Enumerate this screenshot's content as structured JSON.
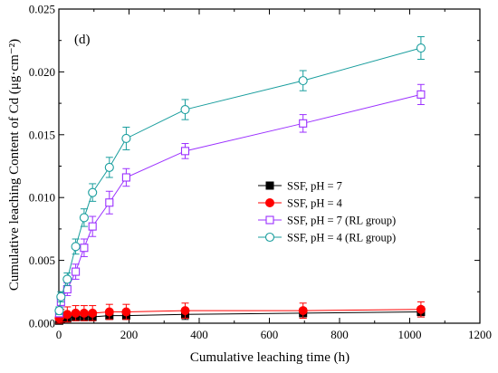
{
  "chart_data": {
    "type": "line",
    "panel_label": "(d)",
    "xlabel": "Cumulative leaching time (h)",
    "ylabel": "Cumulative leaching Content of Cd (μg·cm⁻²)",
    "xlim": [
      0,
      1200
    ],
    "ylim": [
      0,
      0.025
    ],
    "xticks": [
      0,
      200,
      400,
      600,
      800,
      1000,
      1200
    ],
    "yticks": [
      0.0,
      0.005,
      0.01,
      0.015,
      0.02,
      0.025
    ],
    "ytick_labels": [
      "0.000",
      "0.005",
      "0.010",
      "0.015",
      "0.020",
      "0.025"
    ],
    "grid": false,
    "legend_position": "center-right",
    "series": [
      {
        "name": "SSF, pH = 7",
        "color": "#000000",
        "marker": "square-filled",
        "x": [
          1,
          6,
          24,
          48,
          72,
          96,
          144,
          192,
          360,
          696,
          1032
        ],
        "y": [
          0.0002,
          0.0003,
          0.0004,
          0.0005,
          0.0005,
          0.0005,
          0.0006,
          0.0006,
          0.0007,
          0.0008,
          0.0009
        ],
        "err": [
          0.0002,
          0.0002,
          0.0003,
          0.0003,
          0.0003,
          0.0003,
          0.0003,
          0.0003,
          0.0004,
          0.0004,
          0.0004
        ]
      },
      {
        "name": "SSF, pH = 4",
        "color": "#ff0000",
        "marker": "circle-filled",
        "x": [
          1,
          6,
          24,
          48,
          72,
          96,
          144,
          192,
          360,
          696,
          1032
        ],
        "y": [
          0.0004,
          0.0006,
          0.0007,
          0.0008,
          0.0008,
          0.0008,
          0.0009,
          0.0009,
          0.001,
          0.001,
          0.0011
        ],
        "err": [
          0.0004,
          0.0005,
          0.0006,
          0.0006,
          0.0006,
          0.0006,
          0.0006,
          0.0006,
          0.0006,
          0.0006,
          0.0006
        ]
      },
      {
        "name": "SSF, pH = 7 (RL group)",
        "color": "#9b30ff",
        "marker": "square-open",
        "x": [
          1,
          6,
          24,
          48,
          72,
          96,
          144,
          192,
          360,
          696,
          1032
        ],
        "y": [
          0.0008,
          0.0017,
          0.0027,
          0.0041,
          0.006,
          0.0077,
          0.0096,
          0.0116,
          0.0137,
          0.0159,
          0.0182
        ],
        "err": [
          0.0003,
          0.0004,
          0.0005,
          0.0006,
          0.0007,
          0.0008,
          0.0009,
          0.0007,
          0.0006,
          0.0007,
          0.0008
        ]
      },
      {
        "name": "SSF, pH = 4 (RL group)",
        "color": "#1a9e9e",
        "marker": "circle-open",
        "x": [
          1,
          6,
          24,
          48,
          72,
          96,
          144,
          192,
          360,
          696,
          1032
        ],
        "y": [
          0.001,
          0.0021,
          0.0035,
          0.0061,
          0.0084,
          0.0104,
          0.0124,
          0.0147,
          0.017,
          0.0193,
          0.0219
        ],
        "err": [
          0.0003,
          0.0004,
          0.0005,
          0.0006,
          0.0007,
          0.0007,
          0.0008,
          0.0009,
          0.0008,
          0.0008,
          0.0009
        ]
      }
    ]
  }
}
